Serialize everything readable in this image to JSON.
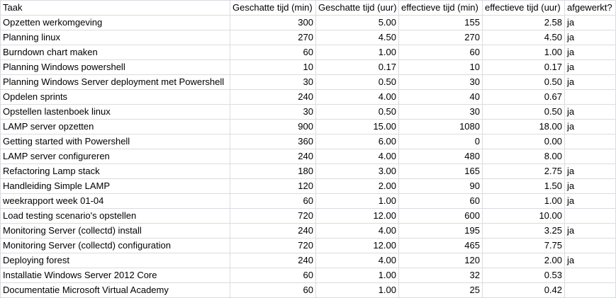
{
  "headers": [
    "Taak",
    "Geschatte tijd (min)",
    "Geschatte tijd (uur)",
    "effectieve tijd (min)",
    "effectieve tijd (uur)",
    "afgewerkt?"
  ],
  "rows": [
    [
      "Opzetten werkomgeving",
      "300",
      "5.00",
      "155",
      "2.58",
      "ja"
    ],
    [
      "Planning linux",
      "270",
      "4.50",
      "270",
      "4.50",
      "ja"
    ],
    [
      "Burndown chart maken",
      "60",
      "1.00",
      "60",
      "1.00",
      "ja"
    ],
    [
      "Planning Windows powershell",
      "10",
      "0.17",
      "10",
      "0.17",
      "ja"
    ],
    [
      "Planning Windows Server deployment met Powershell",
      "30",
      "0.50",
      "30",
      "0.50",
      "ja"
    ],
    [
      "Opdelen sprints",
      "240",
      "4.00",
      "40",
      "0.67",
      ""
    ],
    [
      "Opstellen lastenboek linux",
      "30",
      "0.50",
      "30",
      "0.50",
      "ja"
    ],
    [
      "LAMP server opzetten",
      "900",
      "15.00",
      "1080",
      "18.00",
      "ja"
    ],
    [
      "Getting started with Powershell",
      "360",
      "6.00",
      "0",
      "0.00",
      ""
    ],
    [
      "LAMP server configureren",
      "240",
      "4.00",
      "480",
      "8.00",
      ""
    ],
    [
      "Refactoring Lamp stack",
      "180",
      "3.00",
      "165",
      "2.75",
      "ja"
    ],
    [
      "Handleiding Simple LAMP",
      "120",
      "2.00",
      "90",
      "1.50",
      "ja"
    ],
    [
      "weekrapport week 01-04",
      "60",
      "1.00",
      "60",
      "1.00",
      "ja"
    ],
    [
      "Load testing scenario's opstellen",
      "720",
      "12.00",
      "600",
      "10.00",
      ""
    ],
    [
      "Monitoring Server (collectd) install",
      "240",
      "4.00",
      "195",
      "3.25",
      "ja"
    ],
    [
      "Monitoring Server (collectd) configuration",
      "720",
      "12.00",
      "465",
      "7.75",
      ""
    ],
    [
      "Deploying forest",
      "240",
      "4.00",
      "120",
      "2.00",
      "ja"
    ],
    [
      "Installatie Windows Server 2012 Core",
      "60",
      "1.00",
      "32",
      "0.53",
      ""
    ],
    [
      "Documentatie Microsoft Virtual Academy",
      "60",
      "1.00",
      "25",
      "0.42",
      ""
    ]
  ]
}
